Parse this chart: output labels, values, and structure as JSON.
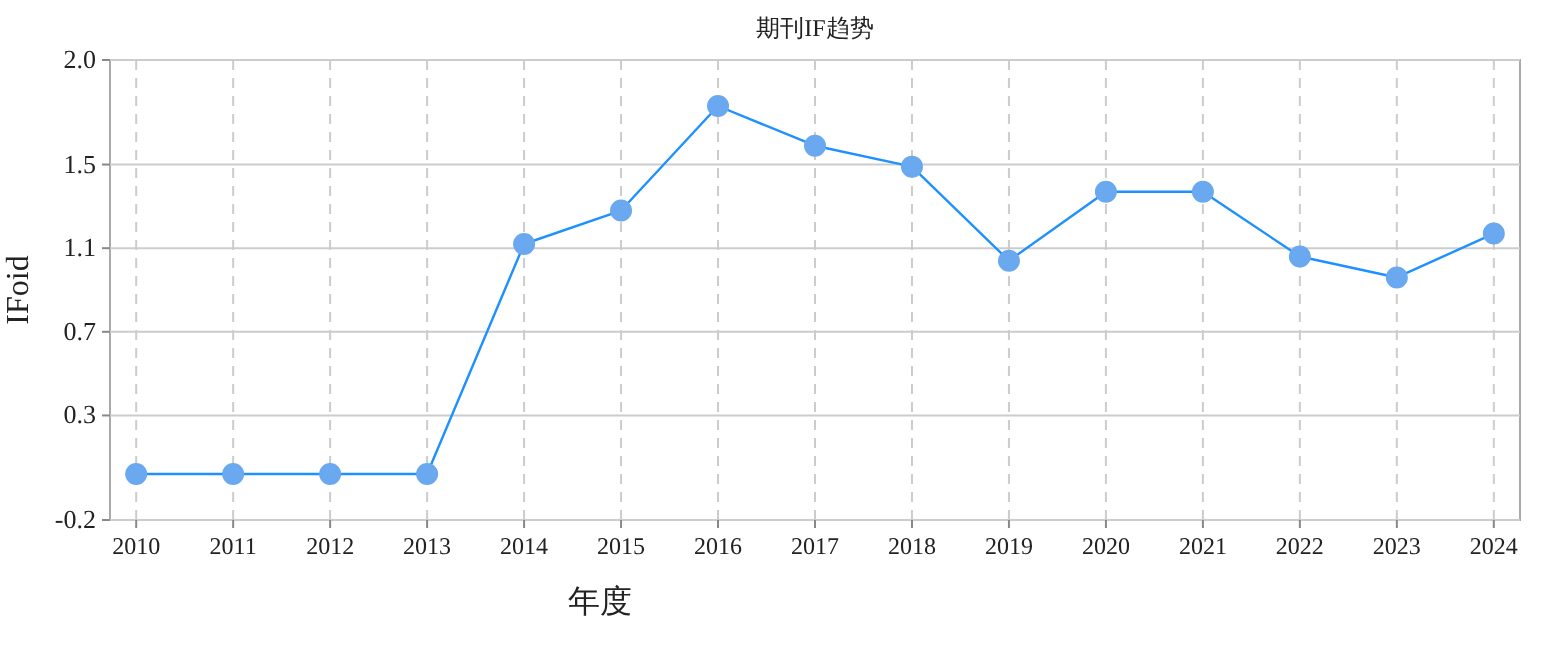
{
  "chart_data": {
    "type": "line",
    "title": "期刊IF趋势",
    "xlabel": "年度",
    "ylabel": "IFoid",
    "categories": [
      "2010",
      "2011",
      "2012",
      "2013",
      "2014",
      "2015",
      "2016",
      "2017",
      "2018",
      "2019",
      "2020",
      "2021",
      "2022",
      "2023",
      "2024"
    ],
    "series": [
      {
        "color": "#1e90ff",
        "values": [
          0.02,
          0.02,
          0.02,
          0.02,
          1.12,
          1.28,
          1.78,
          1.59,
          1.49,
          1.04,
          1.37,
          1.37,
          1.06,
          0.96,
          1.17
        ]
      }
    ],
    "ylim": [
      -0.2,
      2.0
    ],
    "yticks": [
      -0.2,
      0.3,
      0.7,
      1.1,
      1.5,
      {
        "value": 2.0,
        "label": "2.0"
      }
    ],
    "grid": true,
    "marker": "circle"
  }
}
